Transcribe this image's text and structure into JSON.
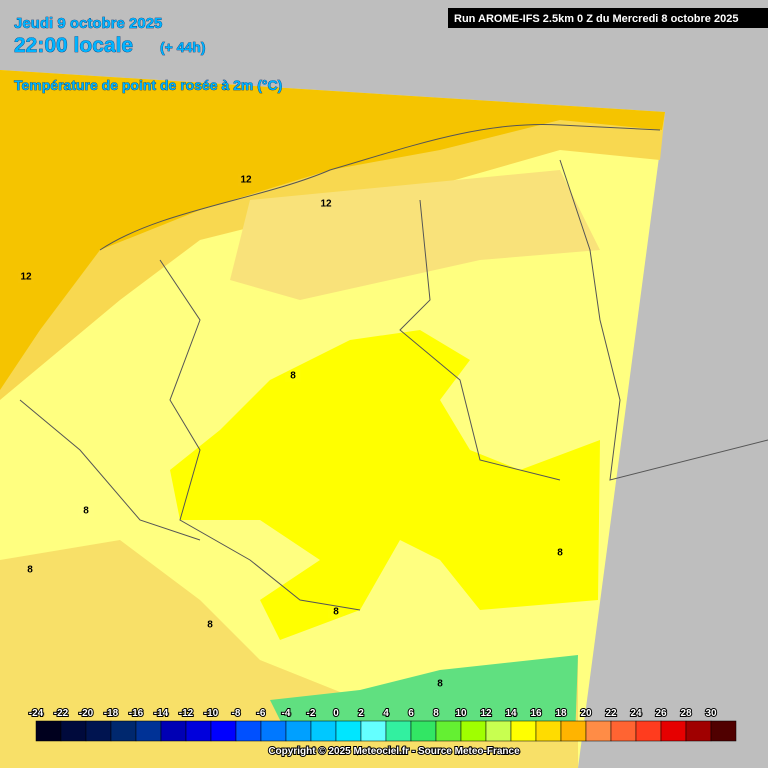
{
  "header": {
    "date": "Jeudi 9 octobre 2025",
    "time": "22:00 locale",
    "lead": "(+ 44h)",
    "variable": "Température de point de rosée à 2m (°C)",
    "run": "Run AROME-IFS 2.5km 0 Z du Mercredi 8 octobre 2025"
  },
  "contour_labels": [
    "12",
    "12",
    "12",
    "8",
    "8",
    "8",
    "8",
    "8",
    "8",
    "8"
  ],
  "legend": {
    "ticks": [
      -24,
      -22,
      -20,
      -18,
      -16,
      -14,
      -12,
      -10,
      -8,
      -6,
      -4,
      -2,
      0,
      2,
      4,
      6,
      8,
      10,
      12,
      14,
      16,
      18,
      20,
      22,
      24,
      26,
      28,
      30
    ],
    "colors": [
      "#00001e",
      "#000a3c",
      "#001450",
      "#00286e",
      "#003296",
      "#0000b4",
      "#0000dc",
      "#0000ff",
      "#0050ff",
      "#0078ff",
      "#00a0ff",
      "#00c8ff",
      "#00e6ff",
      "#64ffff",
      "#32f0a0",
      "#32e664",
      "#64f032",
      "#a0ff00",
      "#c8ff50",
      "#ffff00",
      "#ffdc00",
      "#ffb400",
      "#ff8c46",
      "#ff6432",
      "#ff3c1e",
      "#e60000",
      "#a00000",
      "#500000"
    ]
  },
  "copyright": "Copyright © 2025 Meteociel.fr - Source Meteo-France"
}
